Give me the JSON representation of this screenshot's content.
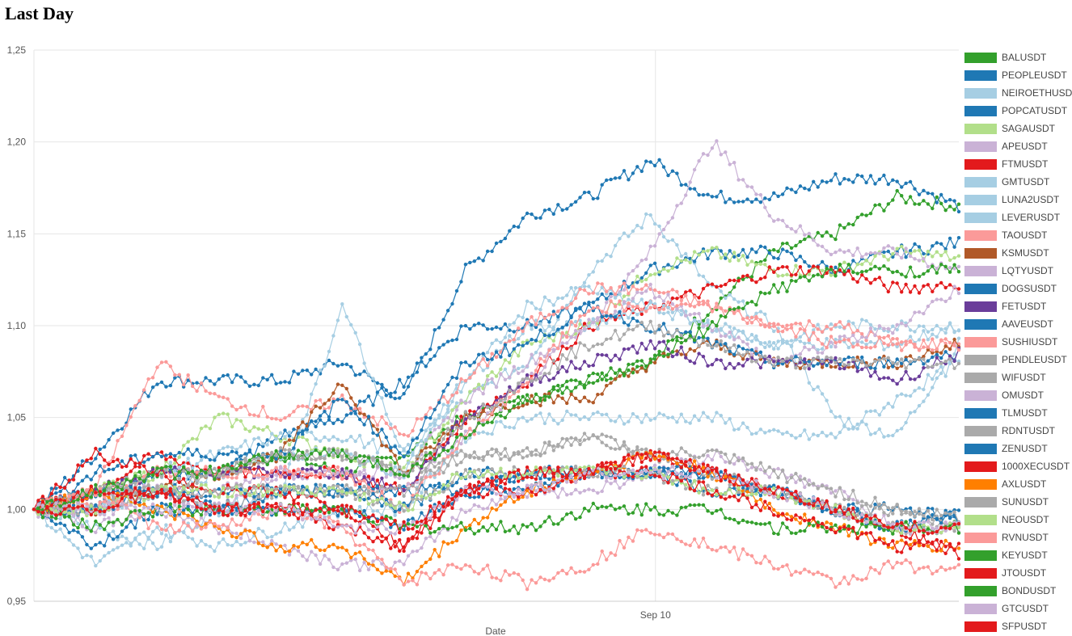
{
  "page": {
    "title": "Last Day"
  },
  "chart_data": {
    "type": "line",
    "title": "Last Day",
    "xlabel": "Date",
    "ylabel": "",
    "x_ticks": [
      "Sep 10"
    ],
    "y_ticks": [
      "0,95",
      "1,00",
      "1,05",
      "1,10",
      "1,15",
      "1,20",
      "1,25"
    ],
    "ylim": [
      0.95,
      1.25
    ],
    "x_range": [
      "Sep 9 ~14:00",
      "Sep 10 ~14:00"
    ],
    "grid": true,
    "legend_position": "right",
    "markers": true,
    "x_index": [
      0,
      20,
      40,
      60,
      80,
      100,
      120,
      140,
      160,
      180,
      200,
      220,
      240,
      260,
      280,
      300
    ],
    "series": [
      {
        "name": "BALUSDT",
        "color": "#33a02c",
        "values": [
          1.0,
          1.01,
          1.02,
          1.02,
          1.03,
          1.02,
          1.03,
          1.05,
          1.06,
          1.07,
          1.08,
          1.11,
          1.14,
          1.15,
          1.17,
          1.165
        ]
      },
      {
        "name": "PEOPLEUSDT",
        "color": "#1f78b4",
        "values": [
          1.0,
          1.03,
          1.07,
          1.07,
          1.07,
          1.08,
          1.06,
          1.13,
          1.16,
          1.17,
          1.19,
          1.17,
          1.17,
          1.18,
          1.18,
          1.165
        ]
      },
      {
        "name": "NEIROETHUSDT",
        "color": "#a6cee3",
        "values": [
          1.0,
          0.99,
          0.98,
          1.0,
          1.01,
          1.11,
          1.03,
          1.06,
          1.08,
          1.13,
          1.16,
          1.12,
          1.1,
          1.05,
          1.04,
          1.09
        ]
      },
      {
        "name": "POPCATUSDT",
        "color": "#1f78b4",
        "values": [
          1.0,
          1.0,
          1.02,
          1.02,
          1.04,
          1.05,
          1.07,
          1.1,
          1.1,
          1.11,
          1.13,
          1.14,
          1.14,
          1.13,
          1.14,
          1.145
        ]
      },
      {
        "name": "SAGAUSDT",
        "color": "#b2df8a",
        "values": [
          1.0,
          1.01,
          1.02,
          1.05,
          1.04,
          1.03,
          1.02,
          1.06,
          1.09,
          1.1,
          1.13,
          1.14,
          1.13,
          1.13,
          1.14,
          1.137
        ]
      },
      {
        "name": "APEUSDT",
        "color": "#cab2d6",
        "values": [
          1.0,
          1.01,
          1.01,
          1.0,
          1.02,
          1.02,
          1.02,
          1.06,
          1.08,
          1.1,
          1.14,
          1.2,
          1.16,
          1.14,
          1.14,
          1.13
        ]
      },
      {
        "name": "FTMUSDT",
        "color": "#e31a1c",
        "values": [
          1.0,
          1.01,
          1.03,
          1.02,
          1.02,
          1.02,
          1.01,
          1.05,
          1.07,
          1.1,
          1.11,
          1.12,
          1.13,
          1.13,
          1.12,
          1.123
        ]
      },
      {
        "name": "GMTUSDT",
        "color": "#a6cee3",
        "values": [
          1.0,
          1.0,
          1.02,
          1.03,
          1.04,
          1.04,
          1.03,
          1.07,
          1.1,
          1.1,
          1.11,
          1.1,
          1.09,
          1.1,
          1.1,
          1.1
        ]
      },
      {
        "name": "LUNA2USDT",
        "color": "#a6cee3",
        "values": [
          1.0,
          0.97,
          0.99,
          0.98,
          0.99,
          1.0,
          1.0,
          1.04,
          1.05,
          1.05,
          1.05,
          1.05,
          1.04,
          1.04,
          1.06,
          1.08
        ]
      },
      {
        "name": "LEVERUSDT",
        "color": "#a6cee3",
        "values": [
          1.0,
          1.0,
          1.01,
          1.02,
          1.03,
          1.03,
          1.02,
          1.07,
          1.11,
          1.12,
          1.11,
          1.1,
          1.09,
          1.09,
          1.09,
          1.1
        ]
      },
      {
        "name": "TAOUSDT",
        "color": "#fb9a99",
        "values": [
          1.0,
          1.01,
          1.08,
          1.06,
          1.05,
          1.06,
          1.04,
          1.07,
          1.1,
          1.12,
          1.12,
          1.11,
          1.1,
          1.1,
          1.09,
          1.09
        ]
      },
      {
        "name": "KSMUSDT",
        "color": "#b15928",
        "values": [
          1.0,
          1.0,
          1.01,
          1.02,
          1.03,
          1.07,
          1.02,
          1.05,
          1.06,
          1.06,
          1.08,
          1.09,
          1.08,
          1.08,
          1.08,
          1.09
        ]
      },
      {
        "name": "LQTYUSDT",
        "color": "#cab2d6",
        "values": [
          1.0,
          1.0,
          1.01,
          1.01,
          1.02,
          1.02,
          1.01,
          1.04,
          1.07,
          1.1,
          1.12,
          1.1,
          1.08,
          1.09,
          1.1,
          1.12
        ]
      },
      {
        "name": "DOGSUSDT",
        "color": "#1f78b4",
        "values": [
          1.0,
          1.02,
          1.03,
          1.03,
          1.03,
          1.06,
          1.03,
          1.08,
          1.09,
          1.11,
          1.1,
          1.09,
          1.08,
          1.08,
          1.08,
          1.085
        ]
      },
      {
        "name": "FETUSDT",
        "color": "#6a3d9a",
        "values": [
          1.0,
          1.01,
          1.02,
          1.02,
          1.02,
          1.02,
          1.01,
          1.05,
          1.07,
          1.08,
          1.09,
          1.08,
          1.08,
          1.08,
          1.07,
          1.085
        ]
      },
      {
        "name": "AAVEUSDT",
        "color": "#1f78b4",
        "values": [
          1.0,
          1.01,
          1.01,
          1.0,
          1.01,
          1.01,
          1.01,
          1.01,
          1.01,
          1.02,
          1.02,
          1.02,
          1.01,
          1.0,
          1.0,
          0.995
        ]
      },
      {
        "name": "SUSHIUSDT",
        "color": "#fb9a99",
        "values": [
          1.0,
          1.0,
          1.02,
          1.02,
          1.02,
          1.02,
          1.0,
          1.04,
          1.07,
          1.11,
          1.11,
          1.11,
          1.1,
          1.09,
          1.09,
          1.09
        ]
      },
      {
        "name": "PENDLEUSDT",
        "color": "#aaaaaa",
        "values": [
          1.0,
          1.01,
          1.01,
          1.02,
          1.03,
          1.03,
          1.02,
          1.05,
          1.07,
          1.09,
          1.1,
          1.09,
          1.08,
          1.08,
          1.08,
          1.08
        ]
      },
      {
        "name": "WIFUSDT",
        "color": "#aaaaaa",
        "values": [
          1.0,
          1.01,
          1.01,
          1.0,
          1.01,
          1.01,
          1.01,
          1.03,
          1.03,
          1.04,
          1.03,
          1.02,
          1.01,
          1.0,
          0.99,
          0.99
        ]
      },
      {
        "name": "OMUSDT",
        "color": "#cab2d6",
        "values": [
          1.0,
          0.99,
          1.0,
          0.99,
          0.98,
          0.97,
          0.97,
          1.0,
          1.01,
          1.01,
          1.02,
          1.03,
          1.02,
          1.01,
          0.99,
          0.99
        ]
      },
      {
        "name": "TLMUSDT",
        "color": "#1f78b4",
        "values": [
          1.0,
          0.98,
          1.0,
          1.0,
          1.0,
          1.0,
          0.99,
          1.01,
          1.02,
          1.02,
          1.02,
          1.01,
          1.01,
          1.0,
          0.99,
          0.997
        ]
      },
      {
        "name": "RDNTUSDT",
        "color": "#aaaaaa",
        "values": [
          1.0,
          1.01,
          1.02,
          1.02,
          1.03,
          1.03,
          1.02,
          1.03,
          1.03,
          1.04,
          1.03,
          1.03,
          1.02,
          1.01,
          1.0,
          0.99
        ]
      },
      {
        "name": "ZENUSDT",
        "color": "#1f78b4",
        "values": [
          1.0,
          1.0,
          1.01,
          1.01,
          1.01,
          1.01,
          1.0,
          1.02,
          1.02,
          1.02,
          1.02,
          1.02,
          1.01,
          1.0,
          0.99,
          0.995
        ]
      },
      {
        "name": "1000XECUSDT",
        "color": "#e31a1c",
        "values": [
          1.0,
          1.03,
          1.02,
          1.01,
          1.01,
          1.0,
          0.98,
          1.01,
          1.02,
          1.02,
          1.03,
          1.02,
          1.01,
          1.0,
          0.99,
          0.975
        ]
      },
      {
        "name": "AXLUSDT",
        "color": "#ff7f00",
        "values": [
          1.0,
          1.01,
          1.0,
          0.99,
          0.98,
          0.98,
          0.96,
          0.99,
          1.01,
          1.02,
          1.03,
          1.02,
          1.0,
          0.99,
          0.98,
          0.98
        ]
      },
      {
        "name": "SUNUSDT",
        "color": "#aaaaaa",
        "values": [
          1.0,
          1.0,
          1.01,
          1.01,
          1.01,
          1.01,
          1.0,
          1.02,
          1.02,
          1.02,
          1.02,
          1.01,
          1.01,
          1.0,
          1.0,
          0.995
        ]
      },
      {
        "name": "NEOUSDT",
        "color": "#b2df8a",
        "values": [
          1.0,
          1.0,
          1.01,
          1.01,
          1.01,
          1.01,
          1.0,
          1.02,
          1.02,
          1.02,
          1.02,
          1.01,
          1.01,
          1.0,
          0.99,
          0.99
        ]
      },
      {
        "name": "RVNUSDT",
        "color": "#fb9a99",
        "values": [
          1.0,
          1.01,
          0.99,
          0.99,
          1.0,
          0.99,
          0.96,
          0.97,
          0.96,
          0.97,
          0.99,
          0.98,
          0.97,
          0.96,
          0.97,
          0.967
        ]
      },
      {
        "name": "KEYUSDT",
        "color": "#33a02c",
        "values": [
          1.0,
          0.99,
          1.0,
          1.0,
          1.0,
          1.0,
          0.99,
          0.99,
          0.99,
          1.0,
          1.0,
          1.0,
          0.99,
          0.99,
          0.99,
          0.99
        ]
      },
      {
        "name": "JTOUSDT",
        "color": "#e31a1c",
        "values": [
          1.0,
          1.01,
          1.01,
          1.0,
          1.0,
          0.99,
          0.98,
          1.01,
          1.01,
          1.02,
          1.02,
          1.01,
          1.0,
          0.99,
          0.98,
          0.98
        ]
      },
      {
        "name": "BONDUSDT",
        "color": "#33a02c",
        "values": [
          1.0,
          1.01,
          1.02,
          1.02,
          1.03,
          1.03,
          1.02,
          1.04,
          1.06,
          1.07,
          1.08,
          1.1,
          1.12,
          1.13,
          1.13,
          1.13
        ]
      },
      {
        "name": "GTCUSDT",
        "color": "#cab2d6",
        "values": [
          1.0,
          1.0,
          1.0,
          1.0,
          1.0,
          0.99,
          0.99,
          1.01,
          1.01,
          1.02,
          1.02,
          1.02,
          1.01,
          1.0,
          0.99,
          0.99
        ]
      },
      {
        "name": "SFPUSDT",
        "color": "#e31a1c",
        "values": [
          1.0,
          1.0,
          1.01,
          1.0,
          1.0,
          1.0,
          0.99,
          1.01,
          1.02,
          1.02,
          1.03,
          1.02,
          1.01,
          1.0,
          0.99,
          0.99
        ]
      }
    ]
  }
}
